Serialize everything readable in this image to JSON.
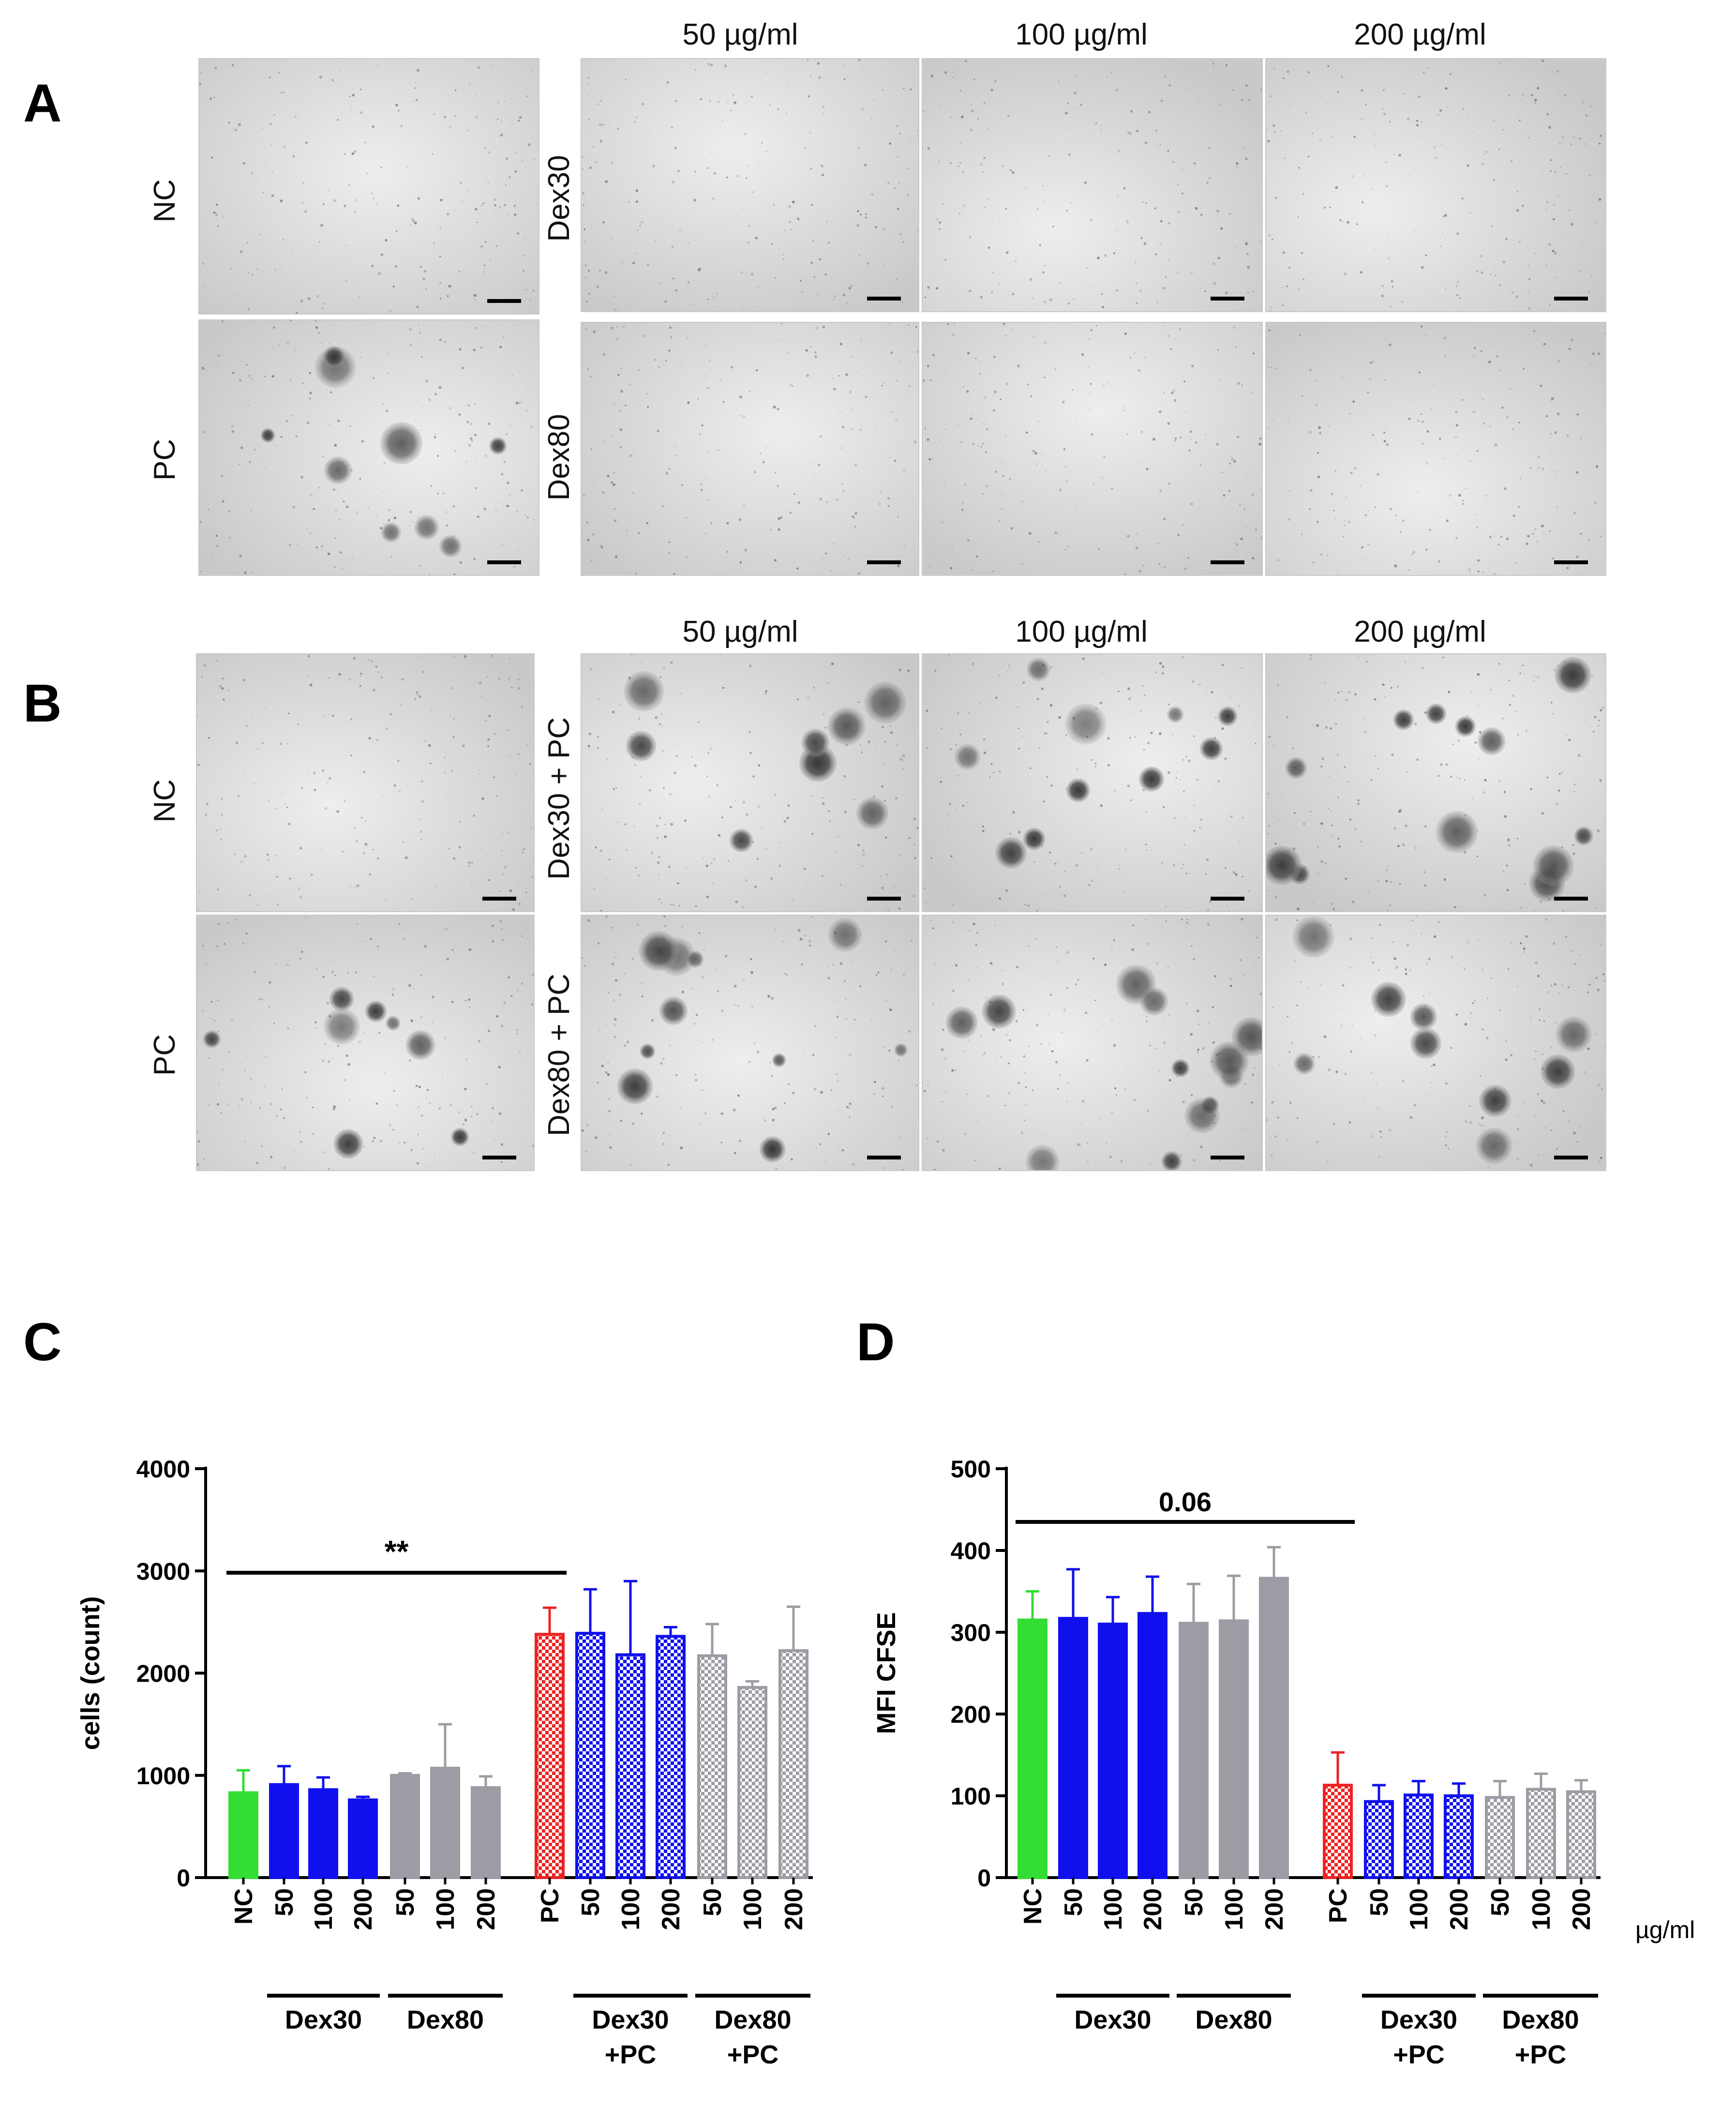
{
  "panels": {
    "A": {
      "label": "A",
      "columns": [
        "50 µg/ml",
        "100 µg/ml",
        "200 µg/ml"
      ],
      "rows": [
        {
          "control": "NC",
          "treatment": "Dex30"
        },
        {
          "control": "PC",
          "treatment": "Dex80"
        }
      ]
    },
    "B": {
      "label": "B",
      "columns": [
        "50 µg/ml",
        "100 µg/ml",
        "200 µg/ml"
      ],
      "rows": [
        {
          "control": "NC",
          "treatment": "Dex30 + PC"
        },
        {
          "control": "PC",
          "treatment": "Dex80 + PC"
        }
      ]
    },
    "C": {
      "label": "C"
    },
    "D": {
      "label": "D"
    }
  },
  "colors": {
    "NC": "#33dd33",
    "Dex30": "#1010ee",
    "Dex80": "#9c9ca4",
    "PC": "#ee2222"
  },
  "chart_data": [
    {
      "type": "bar",
      "panel": "C",
      "ylabel": "cells (count)",
      "ylim": [
        0,
        4000
      ],
      "yticks": [
        0,
        1000,
        2000,
        3000,
        4000
      ],
      "categories": [
        "NC",
        "50",
        "100",
        "200",
        "50",
        "100",
        "200",
        "PC",
        "50",
        "100",
        "200",
        "50",
        "100",
        "200"
      ],
      "values": [
        830,
        910,
        860,
        760,
        1000,
        1070,
        880,
        2380,
        2390,
        2180,
        2360,
        2170,
        1860,
        2220
      ],
      "errors": [
        220,
        180,
        120,
        30,
        20,
        430,
        110,
        260,
        430,
        720,
        90,
        310,
        60,
        430
      ],
      "groups": [
        {
          "label": "Dex30",
          "from": 1,
          "to": 3
        },
        {
          "label": "Dex80",
          "from": 4,
          "to": 6
        },
        {
          "label": "Dex30\n+PC",
          "from": 8,
          "to": 10
        },
        {
          "label": "Dex80\n+PC",
          "from": 11,
          "to": 13
        }
      ],
      "significance": {
        "label": "**",
        "from": 0,
        "to": 7
      }
    },
    {
      "type": "bar",
      "panel": "D",
      "ylabel": "MFI CFSE",
      "ylim": [
        0,
        500
      ],
      "yticks": [
        0,
        100,
        200,
        300,
        400,
        500
      ],
      "categories": [
        "NC",
        "50",
        "100",
        "200",
        "50",
        "100",
        "200",
        "PC",
        "50",
        "100",
        "200",
        "50",
        "100",
        "200"
      ],
      "values": [
        315,
        317,
        310,
        323,
        311,
        314,
        366,
        113,
        93,
        101,
        100,
        98,
        108,
        105
      ],
      "errors": [
        35,
        60,
        33,
        45,
        48,
        55,
        38,
        40,
        20,
        17,
        15,
        20,
        19,
        14
      ],
      "groups": [
        {
          "label": "Dex30",
          "from": 1,
          "to": 3
        },
        {
          "label": "Dex80",
          "from": 4,
          "to": 6
        },
        {
          "label": "Dex30\n+PC",
          "from": 8,
          "to": 10
        },
        {
          "label": "Dex80\n+PC",
          "from": 11,
          "to": 13
        }
      ],
      "significance": {
        "label": "0.06",
        "from": 0,
        "to": 7
      },
      "unit_label": "µg/ml"
    }
  ]
}
